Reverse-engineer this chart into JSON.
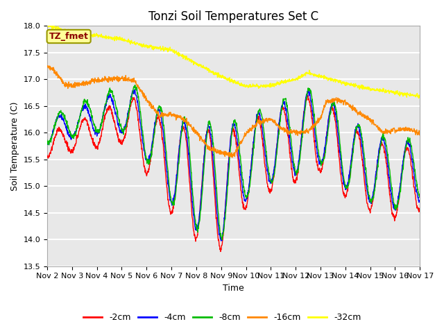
{
  "title": "Tonzi Soil Temperatures Set C",
  "xlabel": "Time",
  "ylabel": "Soil Temperature (C)",
  "ylim": [
    13.5,
    18.0
  ],
  "xlim": [
    0,
    15
  ],
  "x_tick_labels": [
    "Nov 2",
    "Nov 3",
    "Nov 4",
    "Nov 5",
    "Nov 6",
    "Nov 7",
    "Nov 8",
    "Nov 9",
    "Nov 10",
    "Nov 11",
    "Nov 12",
    "Nov 13",
    "Nov 14",
    "Nov 15",
    "Nov 16",
    "Nov 17"
  ],
  "colors": {
    "neg2cm": "#FF0000",
    "neg4cm": "#0000FF",
    "neg8cm": "#00BB00",
    "neg16cm": "#FF8800",
    "neg32cm": "#FFFF00"
  },
  "legend_labels": [
    "-2cm",
    "-4cm",
    "-8cm",
    "-16cm",
    "-32cm"
  ],
  "annotation_text": "TZ_fmet",
  "annotation_color": "#8B0000",
  "annotation_bg": "#FFFF99",
  "annotation_edge": "#999900",
  "background_color": "#FFFFFF",
  "plot_bg_color": "#E8E8E8",
  "grid_color": "#FFFFFF",
  "title_fontsize": 12,
  "axis_label_fontsize": 9,
  "tick_fontsize": 8,
  "legend_fontsize": 9,
  "line_width": 1.0
}
